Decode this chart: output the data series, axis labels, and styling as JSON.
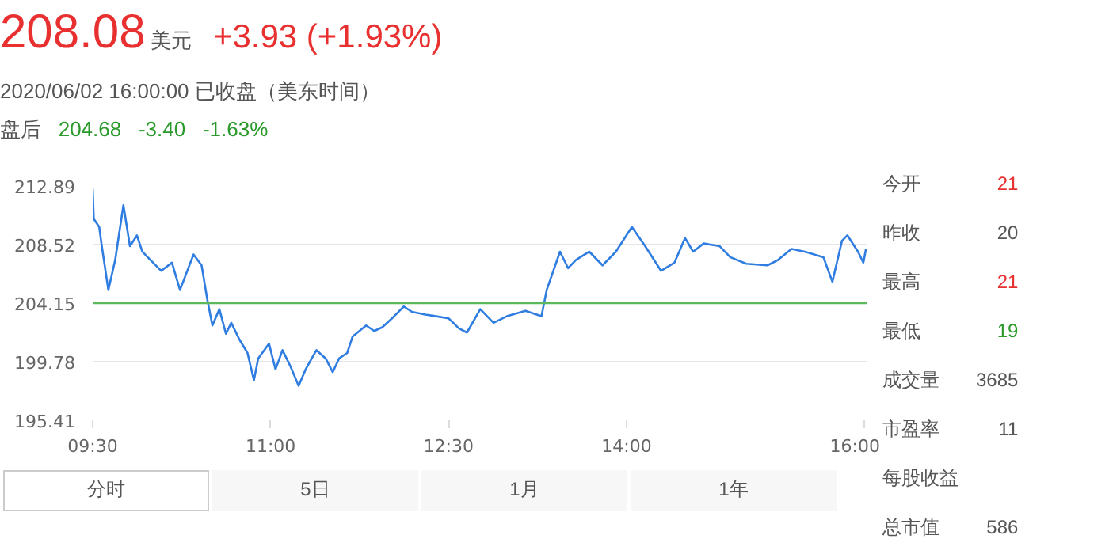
{
  "chart_data": {
    "type": "line",
    "title": "208.08",
    "subtitle": "2020/06/02 16:00:00  已收盘（美东时间）",
    "annotations": [
      "美元",
      "+3.93 (+1.93%)",
      "盘后",
      "204.68",
      "-3.40",
      "-1.63%",
      "今开",
      "21",
      "昨收",
      "20",
      "最高",
      "21",
      "最低",
      "19",
      "成交量",
      "3685",
      "市盈率",
      "11",
      "每股收益",
      "总市值",
      "586",
      "分时",
      "5日",
      "1月",
      "1年"
    ],
    "x": [
      9.5,
      9.509,
      9.555,
      9.577,
      9.632,
      9.69,
      9.759,
      9.814,
      9.873,
      9.918,
      9.986,
      10.077,
      10.168,
      10.236,
      10.35,
      10.418,
      10.464,
      10.509,
      10.568,
      10.623,
      10.668,
      10.736,
      10.805,
      10.859,
      10.895,
      10.986,
      11.041,
      11.1,
      11.168,
      11.236,
      11.295,
      11.386,
      11.464,
      11.523,
      11.577,
      11.645,
      11.691,
      11.805,
      11.873,
      11.941,
      12.032,
      12.123,
      12.191,
      12.305,
      12.395,
      12.5,
      12.587,
      12.655,
      12.767,
      12.879,
      12.991,
      13.148,
      13.283,
      13.327,
      13.439,
      13.507,
      13.574,
      13.686,
      13.798,
      13.91,
      14.045,
      14.157,
      14.291,
      14.404,
      14.493,
      14.561,
      14.65,
      14.785,
      14.874,
      15.009,
      15.188,
      15.278,
      15.39,
      15.502,
      15.659,
      15.735,
      15.816,
      15.861,
      15.951,
      15.996,
      16.018
    ],
    "series": [
      {
        "color": "#2f7de1",
        "values": [
          212.69,
          210.44,
          209.83,
          208.4,
          205.13,
          207.38,
          211.46,
          208.4,
          209.2,
          208.0,
          207.38,
          206.56,
          207.17,
          205.13,
          207.78,
          206.97,
          204.52,
          202.48,
          203.7,
          201.86,
          202.68,
          201.45,
          200.43,
          198.39,
          200.02,
          201.13,
          199.21,
          200.64,
          199.41,
          197.98,
          199.21,
          200.64,
          200.02,
          199.0,
          200.02,
          200.43,
          201.66,
          202.48,
          202.07,
          202.35,
          203.09,
          203.9,
          203.5,
          203.29,
          203.17,
          203.01,
          202.27,
          201.95,
          203.7,
          202.68,
          203.17,
          203.58,
          203.17,
          205.13,
          207.99,
          206.76,
          207.38,
          207.99,
          206.97,
          207.99,
          209.83,
          208.4,
          206.56,
          207.17,
          209.01,
          207.99,
          208.6,
          208.4,
          207.58,
          207.09,
          206.97,
          207.38,
          208.19,
          207.99,
          207.58,
          205.74,
          208.81,
          209.21,
          207.99,
          207.17,
          208.19
        ]
      }
    ],
    "xlim": [
      9.5,
      16.03
    ],
    "ylim": [
      195.41,
      212.89
    ],
    "xticks": [
      {
        "value": 9.5,
        "label": "09:30"
      },
      {
        "value": 11,
        "label": "11:00"
      },
      {
        "value": 12.5,
        "label": "12:30"
      },
      {
        "value": 14,
        "label": "14:00"
      },
      {
        "value": 16,
        "label": "16:00"
      }
    ],
    "yticks": [
      195.41,
      199.78,
      204.15,
      208.52,
      212.89
    ],
    "ref_lines": [
      {
        "axis": "y",
        "value": 204.15,
        "color": "#5cb85c"
      }
    ],
    "grid": "y",
    "marker": "none",
    "line_style": "solid"
  }
}
